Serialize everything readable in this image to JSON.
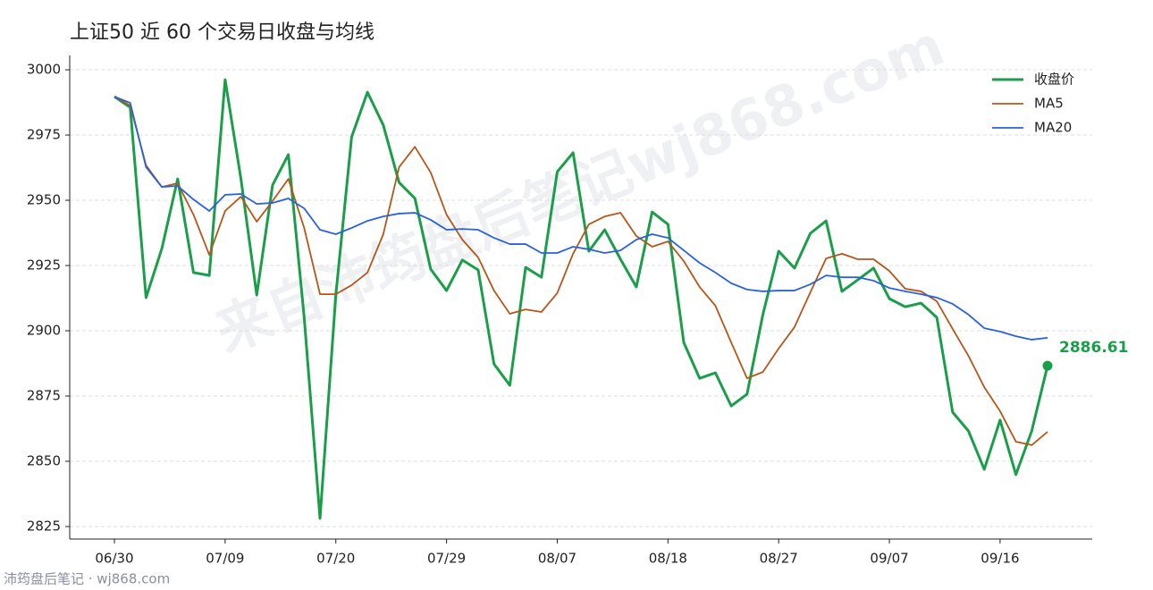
{
  "chart_data": {
    "type": "line",
    "title": "上证50 近 60 个交易日收盘与均线",
    "footer": "沛筠盘后笔记 · wj868.com",
    "watermark": "来自沛筠盘后笔记wj868.com",
    "categories": [
      "06/30",
      null,
      null,
      null,
      null,
      null,
      null,
      "07/09",
      null,
      null,
      null,
      null,
      null,
      null,
      "07/20",
      null,
      null,
      null,
      null,
      null,
      null,
      "07/29",
      null,
      null,
      null,
      null,
      null,
      null,
      "08/07",
      null,
      null,
      null,
      null,
      null,
      null,
      "08/18",
      null,
      null,
      null,
      null,
      null,
      null,
      "08/27",
      null,
      null,
      null,
      null,
      null,
      null,
      "09/07",
      null,
      null,
      null,
      null,
      null,
      null,
      "09/16",
      null,
      null,
      null
    ],
    "series": [
      {
        "name": "收盘价",
        "color": "#1a9e4a",
        "values": [
          2989.7,
          2985.6,
          2912.7,
          2931.5,
          2958.2,
          2922.3,
          2921.2,
          2996.2,
          2958.2,
          2913.7,
          2955.8,
          2967.5,
          2905.1,
          2828.1,
          2913.7,
          2974.3,
          2991.4,
          2978.8,
          2956.8,
          2950.7,
          2923.6,
          2915.4,
          2927.1,
          2923.3,
          2887.3,
          2879.1,
          2924.3,
          2920.5,
          2960.9,
          2968.2,
          2930.5,
          2938.7,
          2927.4,
          2916.8,
          2945.5,
          2940.8,
          2895.5,
          2881.8,
          2883.9,
          2871.2,
          2875.7,
          2906.2,
          2930.5,
          2924.0,
          2937.3,
          2942.1,
          2915.1,
          2919.5,
          2924.0,
          2912.3,
          2909.2,
          2910.6,
          2905.1,
          2868.8,
          2861.6,
          2846.9,
          2865.8,
          2844.9,
          2861.6,
          2886.61
        ]
      },
      {
        "name": "MA5",
        "color": "#b5561a",
        "values": [
          2989.7,
          2986.3,
          2963.4,
          2955.1,
          2956.5,
          2944.5,
          2929.1,
          2945.9,
          2951.4,
          2941.8,
          2949.7,
          2958.2,
          2939.4,
          2914.0,
          2914.0,
          2917.5,
          2922.3,
          2937.0,
          2962.7,
          2970.5,
          2960.6,
          2944.5,
          2934.9,
          2928.1,
          2915.4,
          2906.5,
          2908.2,
          2907.2,
          2914.4,
          2929.5,
          2940.8,
          2943.8,
          2945.2,
          2936.3,
          2932.2,
          2934.2,
          2926.7,
          2916.8,
          2909.6,
          2895.5,
          2881.8,
          2884.2,
          2893.2,
          2901.4,
          2914.7,
          2927.7,
          2929.5,
          2927.4,
          2927.4,
          2922.9,
          2916.1,
          2915.1,
          2911.3,
          2900.7,
          2890.4,
          2878.4,
          2869.2,
          2857.5,
          2856.2,
          2861.3
        ]
      },
      {
        "name": "MA20",
        "color": "#2a62d8",
        "values": [
          2989.7,
          2987.3,
          2962.7,
          2955.1,
          2955.5,
          2950.3,
          2945.9,
          2952.1,
          2952.4,
          2948.6,
          2949.0,
          2950.7,
          2946.9,
          2938.7,
          2937.0,
          2939.4,
          2942.1,
          2943.8,
          2944.9,
          2945.2,
          2942.5,
          2938.7,
          2939.0,
          2938.7,
          2935.6,
          2933.2,
          2933.2,
          2929.8,
          2929.8,
          2932.2,
          2931.2,
          2929.8,
          2930.8,
          2934.9,
          2937.0,
          2935.6,
          2930.8,
          2926.0,
          2922.3,
          2918.2,
          2915.8,
          2915.1,
          2915.4,
          2915.4,
          2917.8,
          2921.2,
          2920.5,
          2920.5,
          2919.2,
          2916.4,
          2915.1,
          2914.0,
          2912.7,
          2910.3,
          2906.2,
          2901.0,
          2899.7,
          2897.9,
          2896.6,
          2897.3
        ]
      }
    ],
    "ylim": [
      2820.2,
      3005.5
    ],
    "yticks": [
      2825,
      2850,
      2875,
      2900,
      2925,
      2950,
      2975,
      3000
    ],
    "grid": true,
    "legend": "upper right"
  }
}
